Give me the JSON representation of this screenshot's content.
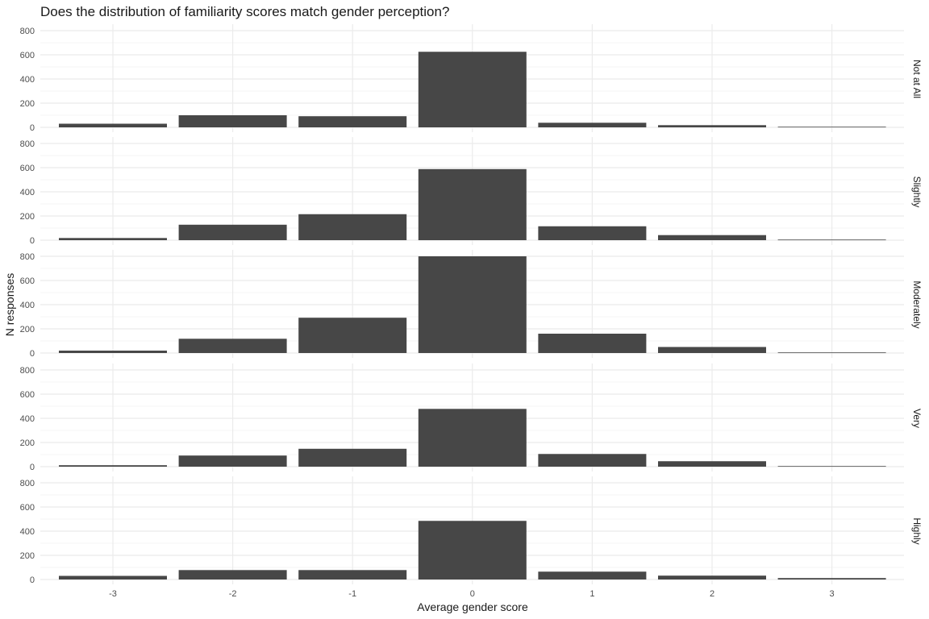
{
  "title": "Does the distribution of familiarity scores match gender perception?",
  "chart_data": {
    "type": "bar",
    "title": "Does the distribution of familiarity scores match gender perception?",
    "xlabel": "Average gender score",
    "ylabel": "N responses",
    "categories": [
      "-3",
      "-2",
      "-1",
      "0",
      "1",
      "2",
      "3"
    ],
    "ylim": [
      0,
      800
    ],
    "yticks": [
      0,
      200,
      400,
      600,
      800
    ],
    "grid": true,
    "bar_color": "#474747",
    "grid_color": "#ebebeb",
    "facets": [
      {
        "label": "Not at All",
        "values": [
          30,
          100,
          92,
          625,
          38,
          18,
          5
        ]
      },
      {
        "label": "Slightly",
        "values": [
          18,
          128,
          215,
          588,
          115,
          42,
          5
        ]
      },
      {
        "label": "Moderately",
        "values": [
          20,
          118,
          292,
          810,
          160,
          50,
          5
        ]
      },
      {
        "label": "Very",
        "values": [
          12,
          92,
          148,
          478,
          105,
          45,
          5
        ]
      },
      {
        "label": "Highly",
        "values": [
          30,
          78,
          78,
          485,
          65,
          32,
          12
        ]
      }
    ]
  }
}
